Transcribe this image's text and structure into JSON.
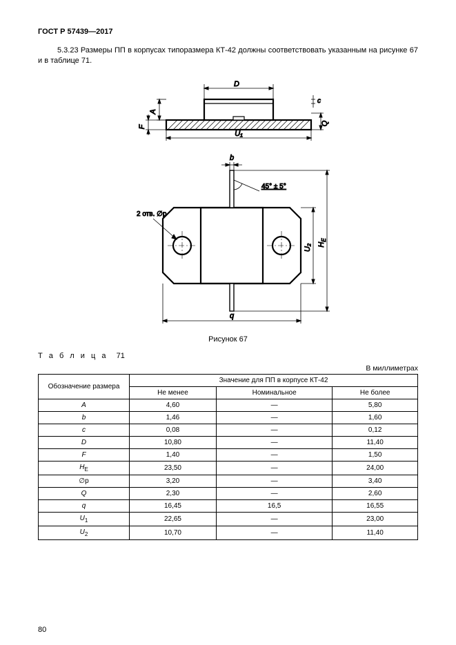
{
  "header": "ГОСТ Р 57439—2017",
  "paragraph": "5.3.23 Размеры ПП в корпусах типоразмера КТ-42 должны соответствовать указанным на рисунке 67 и в таблице 71.",
  "figure": {
    "caption": "Рисунок 67",
    "labels": {
      "D": "D",
      "A": "A",
      "F": "F",
      "Q": "Q",
      "c": "c",
      "U1": "U₁",
      "U2": "U₂",
      "HE": "H",
      "HE_sub": "E",
      "b": "b",
      "q": "q",
      "angle": "45° ± 5°",
      "holes": "2 отв. ∅p"
    },
    "style": {
      "stroke": "#000000",
      "stroke_thick": 2.2,
      "stroke_thin": 0.8,
      "stroke_hatch": 0.7,
      "font_label": 11,
      "font_small": 10
    }
  },
  "table": {
    "title_prefix": "Т а б л и ц а",
    "title_num": "71",
    "units": "В миллиметрах",
    "col_header_main": "Обозначение размера",
    "col_header_span": "Значение для ПП в корпусе КТ-42",
    "sub_headers": [
      "Не менее",
      "Номинальное",
      "Не более"
    ],
    "rows": [
      {
        "k": "A",
        "it": true,
        "min": "4,60",
        "nom": "—",
        "max": "5,80"
      },
      {
        "k": "b",
        "it": true,
        "min": "1,46",
        "nom": "—",
        "max": "1,60"
      },
      {
        "k": "c",
        "it": true,
        "min": "0,08",
        "nom": "—",
        "max": "0,12"
      },
      {
        "k": "D",
        "it": true,
        "min": "10,80",
        "nom": "—",
        "max": "11,40"
      },
      {
        "k": "F",
        "it": true,
        "min": "1,40",
        "nom": "—",
        "max": "1,50"
      },
      {
        "k": "H",
        "sub": "E",
        "it": true,
        "min": "23,50",
        "nom": "—",
        "max": "24,00"
      },
      {
        "k": "∅p",
        "it": false,
        "min": "3,20",
        "nom": "—",
        "max": "3,40"
      },
      {
        "k": "Q",
        "it": true,
        "min": "2,30",
        "nom": "—",
        "max": "2,60"
      },
      {
        "k": "q",
        "it": true,
        "min": "16,45",
        "nom": "16,5",
        "max": "16,55"
      },
      {
        "k": "U",
        "sub": "1",
        "it": true,
        "min": "22,65",
        "nom": "—",
        "max": "23,00"
      },
      {
        "k": "U",
        "sub": "2",
        "it": true,
        "min": "10,70",
        "nom": "—",
        "max": "11,40"
      }
    ]
  },
  "page_number": "80"
}
